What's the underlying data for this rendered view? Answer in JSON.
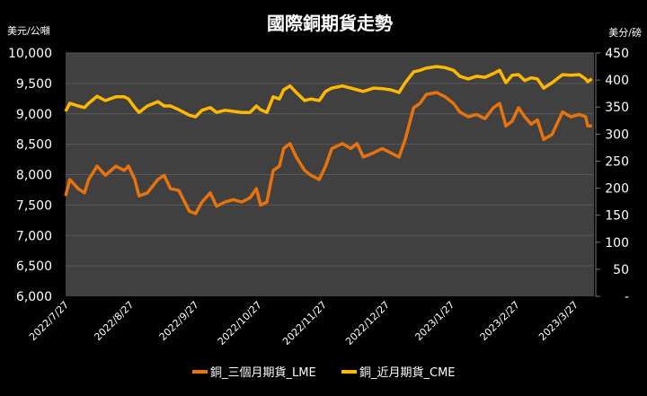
{
  "chart_data": {
    "type": "line",
    "title": "國際銅期貨走勢",
    "ylabel_left": "美元/公噸",
    "ylabel_right": "美分/磅",
    "ylim_left": [
      6000,
      10000
    ],
    "ylim_right": [
      0,
      450
    ],
    "yticks_left": [
      "6,000",
      "6,500",
      "7,000",
      "7,500",
      "8,000",
      "8,500",
      "9,000",
      "9,500",
      "10,000"
    ],
    "yticks_right": [
      "-",
      "50",
      "100",
      "150",
      "200",
      "250",
      "300",
      "350",
      "400",
      "450"
    ],
    "xticks": [
      "2022/7/27",
      "2022/8/27",
      "2022/9/27",
      "2022/10/27",
      "2022/11/27",
      "2022/12/27",
      "2023/1/27",
      "2023/2/27",
      "2023/3/27"
    ],
    "grid": true,
    "legend_position": "bottom",
    "colors": {
      "background": "#000000",
      "plot_bg": "#404040",
      "grid": "#5a5a5a",
      "lme": "#E8720C",
      "cme": "#FFB800"
    },
    "x": [
      "2022-07-27",
      "2022-07-29",
      "2022-08-02",
      "2022-08-05",
      "2022-08-07",
      "2022-08-11",
      "2022-08-15",
      "2022-08-20",
      "2022-08-24",
      "2022-08-26",
      "2022-08-29",
      "2022-08-31",
      "2022-09-04",
      "2022-09-09",
      "2022-09-12",
      "2022-09-15",
      "2022-09-19",
      "2022-09-24",
      "2022-09-27",
      "2022-09-30",
      "2022-10-04",
      "2022-10-07",
      "2022-10-11",
      "2022-10-15",
      "2022-10-19",
      "2022-10-23",
      "2022-10-26",
      "2022-10-28",
      "2022-10-31",
      "2022-11-03",
      "2022-11-06",
      "2022-11-08",
      "2022-11-11",
      "2022-11-14",
      "2022-11-18",
      "2022-11-21",
      "2022-11-25",
      "2022-11-28",
      "2022-12-01",
      "2022-12-06",
      "2022-12-10",
      "2022-12-13",
      "2022-12-16",
      "2022-12-21",
      "2022-12-25",
      "2022-12-29",
      "2023-01-02",
      "2023-01-05",
      "2023-01-09",
      "2023-01-12",
      "2023-01-15",
      "2023-01-20",
      "2023-01-24",
      "2023-01-28",
      "2023-01-31",
      "2023-02-04",
      "2023-02-08",
      "2023-02-12",
      "2023-02-16",
      "2023-02-19",
      "2023-02-22",
      "2023-02-25",
      "2023-02-28",
      "2023-03-03",
      "2023-03-06",
      "2023-03-09",
      "2023-03-12",
      "2023-03-16",
      "2023-03-21",
      "2023-03-25",
      "2023-03-29",
      "2023-04-01",
      "2023-04-02",
      "2023-04-04"
    ],
    "series": [
      {
        "name": "銅_三個月期貨_LME",
        "axis": "left",
        "values": [
          7650,
          7920,
          7770,
          7700,
          7920,
          8140,
          7990,
          8140,
          8070,
          8140,
          7920,
          7650,
          7700,
          7920,
          7990,
          7770,
          7740,
          7400,
          7360,
          7550,
          7700,
          7480,
          7550,
          7590,
          7550,
          7620,
          7770,
          7500,
          7550,
          8070,
          8140,
          8430,
          8510,
          8290,
          8070,
          7990,
          7920,
          8140,
          8430,
          8510,
          8430,
          8510,
          8290,
          8360,
          8430,
          8360,
          8290,
          8580,
          9100,
          9170,
          9320,
          9350,
          9280,
          9170,
          9030,
          8950,
          8990,
          8920,
          9100,
          9170,
          8800,
          8880,
          9100,
          8950,
          8830,
          8900,
          8580,
          8660,
          9030,
          8950,
          8990,
          8950,
          8800,
          8800
        ]
      },
      {
        "name": "銅_近月期貨_CME",
        "axis": "right",
        "values": [
          342,
          357,
          352,
          349,
          357,
          370,
          362,
          369,
          369,
          365,
          349,
          340,
          352,
          360,
          352,
          352,
          345,
          335,
          332,
          344,
          349,
          340,
          344,
          342,
          340,
          340,
          352,
          345,
          340,
          369,
          365,
          382,
          389,
          377,
          362,
          365,
          362,
          379,
          385,
          389,
          385,
          382,
          379,
          385,
          384,
          382,
          377,
          395,
          415,
          418,
          422,
          425,
          423,
          418,
          407,
          402,
          407,
          405,
          412,
          418,
          395,
          409,
          410,
          399,
          404,
          402,
          385,
          395,
          410,
          409,
          410,
          402,
          397,
          402
        ]
      }
    ]
  }
}
